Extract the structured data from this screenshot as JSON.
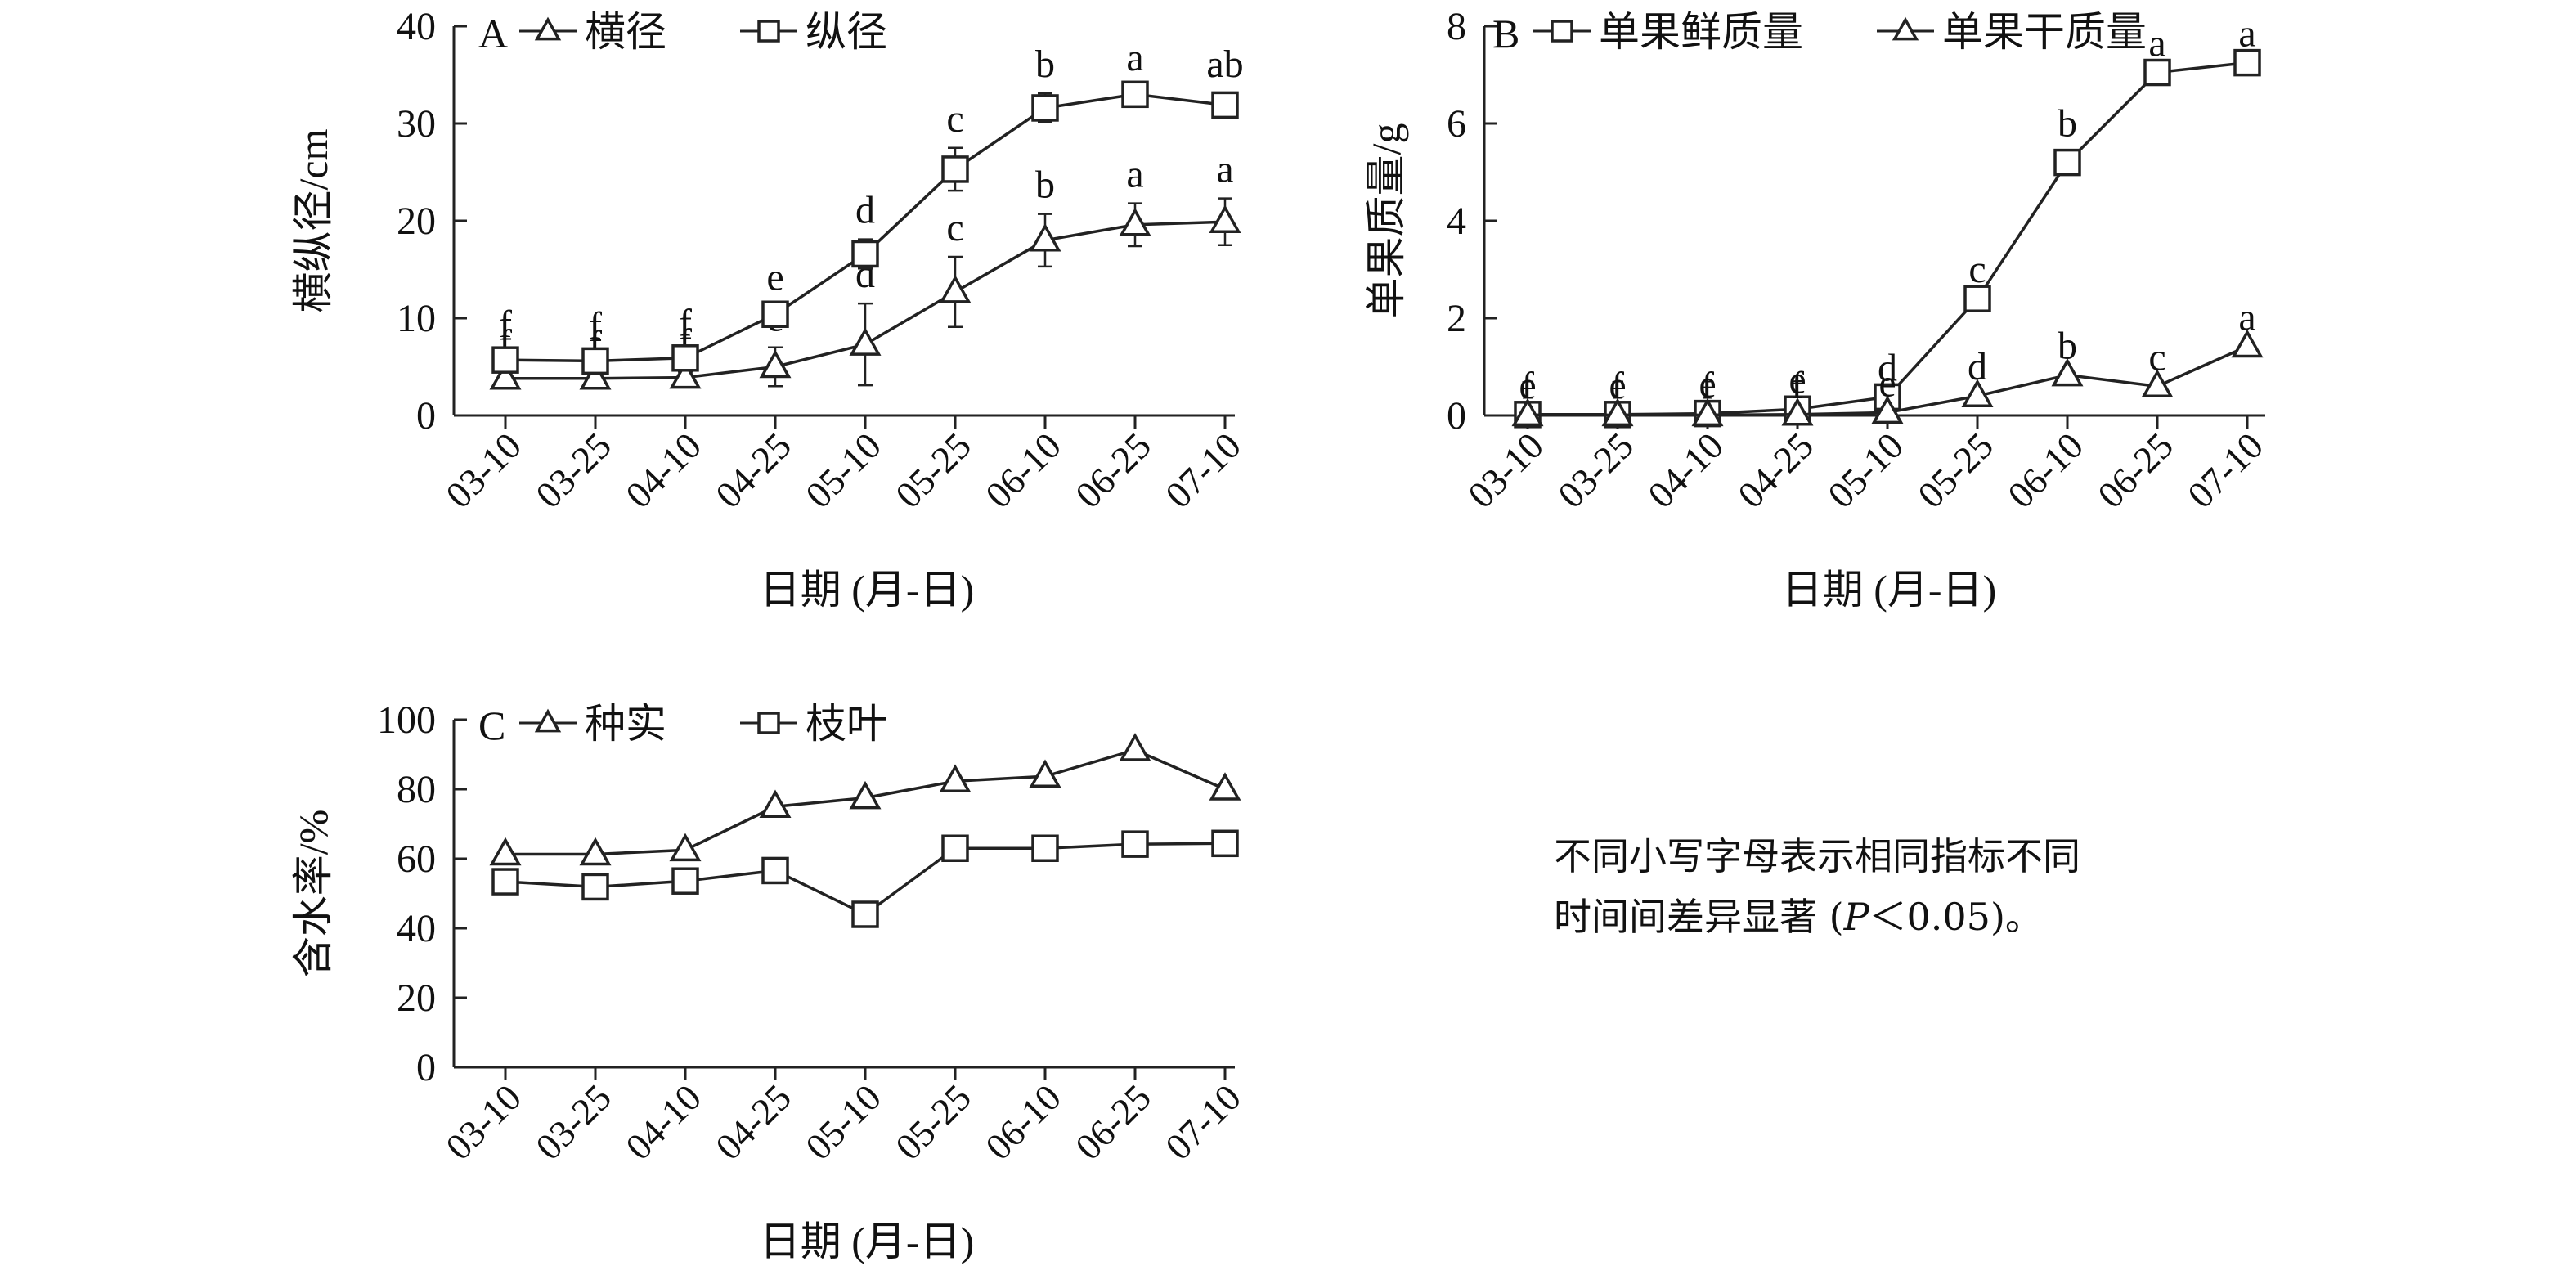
{
  "x_axis_title": "日期 (月-日)",
  "note": {
    "line1": "不同小写字母表示相同指标不同",
    "line2_a": "时间间差异显著 (",
    "line2_p": "P",
    "line2_b": "＜0.05)。"
  },
  "chart_data": [
    {
      "id": "A",
      "panel_label": "A",
      "type": "line",
      "categories": [
        "03-10",
        "03-25",
        "04-10",
        "04-25",
        "05-10",
        "05-25",
        "06-10",
        "06-25",
        "07-10"
      ],
      "ylabel": "横纵径/cm",
      "xlabel": "日期 (月-日)",
      "ylim": [
        0,
        40
      ],
      "yticks": [
        0,
        10,
        20,
        30,
        40
      ],
      "legend": "top-left",
      "series": [
        {
          "name": "横径",
          "marker": "triangle",
          "values": [
            3.8,
            3.8,
            3.9,
            5.0,
            7.3,
            12.7,
            18.0,
            19.6,
            19.9
          ],
          "errors": [
            0.6,
            0.5,
            0.6,
            2.0,
            4.2,
            3.6,
            2.7,
            2.2,
            2.4
          ],
          "letters": [
            "f",
            "f",
            "f",
            "e",
            "d",
            "c",
            "b",
            "a",
            "a"
          ]
        },
        {
          "name": "纵径",
          "marker": "square",
          "values": [
            5.7,
            5.6,
            5.9,
            10.4,
            16.6,
            25.3,
            31.6,
            33.0,
            31.9
          ],
          "errors": [
            0.7,
            0.6,
            0.6,
            0.8,
            1.5,
            2.2,
            1.5,
            0.8,
            1.2
          ],
          "letters": [
            "f",
            "f",
            "f",
            "e",
            "d",
            "c",
            "b",
            "a",
            "ab"
          ]
        }
      ]
    },
    {
      "id": "B",
      "panel_label": "B",
      "type": "line",
      "categories": [
        "03-10",
        "03-25",
        "04-10",
        "04-25",
        "05-10",
        "05-25",
        "06-10",
        "06-25",
        "07-10"
      ],
      "ylabel": "单果质量/g",
      "xlabel": "日期 (月-日)",
      "ylim": [
        0,
        8
      ],
      "yticks": [
        0,
        2,
        4,
        6,
        8
      ],
      "legend": "top-left",
      "series": [
        {
          "name": "单果鲜质量",
          "marker": "square",
          "values": [
            0.02,
            0.02,
            0.04,
            0.13,
            0.38,
            2.4,
            5.2,
            7.05,
            7.25
          ],
          "errors": [
            0,
            0,
            0,
            0,
            0,
            0,
            0.2,
            0,
            0
          ],
          "letters": [
            "e",
            "e",
            "e",
            "e",
            "d",
            "c",
            "b",
            "a",
            "a"
          ]
        },
        {
          "name": "单果干质量",
          "marker": "triangle",
          "values": [
            0.01,
            0.01,
            0.01,
            0.02,
            0.06,
            0.4,
            0.83,
            0.6,
            1.42
          ],
          "errors": [
            0,
            0,
            0,
            0,
            0,
            0,
            0,
            0,
            0
          ],
          "letters": [
            "f",
            "f",
            "f",
            "f",
            "e",
            "d",
            "b",
            "c",
            "a"
          ]
        }
      ]
    },
    {
      "id": "C",
      "panel_label": "C",
      "type": "line",
      "categories": [
        "03-10",
        "03-25",
        "04-10",
        "04-25",
        "05-10",
        "05-25",
        "06-10",
        "06-25",
        "07-10"
      ],
      "ylabel": "含水率/%",
      "xlabel": "日期 (月-日)",
      "ylim": [
        0,
        100
      ],
      "yticks": [
        0,
        20,
        40,
        60,
        80,
        100
      ],
      "legend": "top-left",
      "series": [
        {
          "name": "种实",
          "marker": "triangle",
          "values": [
            61.3,
            61.3,
            62.5,
            75.0,
            77.5,
            82.3,
            83.7,
            91.3,
            80.0
          ],
          "errors": [
            0,
            0,
            0,
            0,
            0,
            0,
            0,
            0,
            0
          ],
          "letters": []
        },
        {
          "name": "枝叶",
          "marker": "square",
          "values": [
            53.4,
            51.9,
            53.6,
            56.6,
            44.0,
            63.0,
            63.0,
            64.2,
            64.4
          ],
          "errors": [
            0,
            0,
            0,
            0,
            0,
            0,
            0,
            0,
            0
          ],
          "letters": []
        }
      ]
    }
  ]
}
